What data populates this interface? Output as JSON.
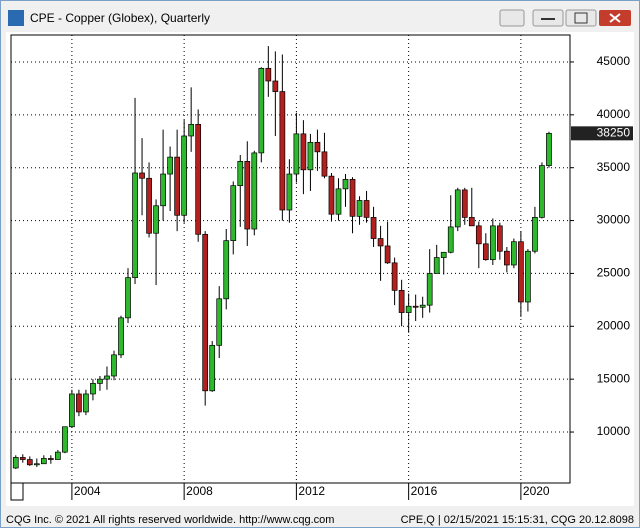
{
  "window_title": "CPE - Copper (Globex), Quarterly",
  "footer_left": "CQG Inc. © 2021 All rights reserved worldwide. http://www.cqg.com",
  "footer_right": "CPE,Q | 02/15/2021 15:15:31, CQG 20.12.8098",
  "chart_data": {
    "type": "candlestick",
    "x": [
      2002,
      2002.25,
      2002.5,
      2002.75,
      2003,
      2003.25,
      2003.5,
      2003.75,
      2004,
      2004.25,
      2004.5,
      2004.75,
      2005,
      2005.25,
      2005.5,
      2005.75,
      2006,
      2006.25,
      2006.5,
      2006.75,
      2007,
      2007.25,
      2007.5,
      2007.75,
      2008,
      2008.25,
      2008.5,
      2008.75,
      2009,
      2009.25,
      2009.5,
      2009.75,
      2010,
      2010.25,
      2010.5,
      2010.75,
      2011,
      2011.25,
      2011.5,
      2011.75,
      2012,
      2012.25,
      2012.5,
      2012.75,
      2013,
      2013.25,
      2013.5,
      2013.75,
      2014,
      2014.25,
      2014.5,
      2014.75,
      2015,
      2015.25,
      2015.5,
      2015.75,
      2016,
      2016.25,
      2016.5,
      2016.75,
      2017,
      2017.25,
      2017.5,
      2017.75,
      2018,
      2018.25,
      2018.5,
      2018.75,
      2019,
      2019.25,
      2019.5,
      2019.75,
      2020,
      2020.25,
      2020.5,
      2020.75,
      2021
    ],
    "open": [
      6600,
      7600,
      7400,
      6900,
      7000,
      7500,
      7400,
      8100,
      10500,
      13600,
      11900,
      13600,
      14600,
      15000,
      15300,
      17300,
      20800,
      24600,
      34500,
      34000,
      28800,
      31400,
      34400,
      36000,
      30500,
      38000,
      39100,
      28700,
      13900,
      18200,
      22600,
      28100,
      33300,
      35600,
      29200,
      36400,
      44400,
      43200,
      42200,
      31000,
      34400,
      38200,
      34800,
      37400,
      36500,
      34200,
      30600,
      33000,
      33900,
      30400,
      31900,
      30300,
      28300,
      27600,
      26000,
      23400,
      21300,
      21900,
      21800,
      22000,
      25000,
      26500,
      27000,
      29400,
      32900,
      30300,
      29500,
      27800,
      26300,
      29500,
      27100,
      25800,
      28000,
      22300,
      27100,
      30300,
      35200
    ],
    "high": [
      7800,
      7900,
      7700,
      7500,
      7800,
      7800,
      8300,
      10500,
      14000,
      14000,
      14000,
      15000,
      15300,
      16200,
      17700,
      21000,
      25500,
      41600,
      37800,
      35500,
      32000,
      38600,
      37000,
      38600,
      39500,
      42600,
      40500,
      29000,
      18600,
      23800,
      29200,
      33700,
      36200,
      37500,
      36600,
      44500,
      46500,
      46000,
      45700,
      35800,
      40200,
      39500,
      38200,
      38600,
      38300,
      34500,
      34000,
      34400,
      34100,
      32300,
      32800,
      31300,
      29500,
      29900,
      26500,
      24400,
      23100,
      23000,
      22800,
      27300,
      27700,
      27000,
      32400,
      33100,
      33100,
      33100,
      29900,
      28800,
      30200,
      29800,
      27500,
      28300,
      29000,
      27300,
      31300,
      35500,
      38400
    ],
    "low": [
      6500,
      7100,
      6800,
      6700,
      7000,
      7000,
      7400,
      8000,
      10400,
      11500,
      11600,
      13000,
      13900,
      14000,
      14900,
      17000,
      20300,
      24000,
      30500,
      28400,
      23900,
      30000,
      30900,
      29000,
      29800,
      36500,
      28000,
      12500,
      13800,
      17000,
      21600,
      26800,
      29400,
      27600,
      28600,
      35500,
      41700,
      38000,
      30000,
      29800,
      33600,
      32500,
      32800,
      34700,
      34000,
      29900,
      30000,
      31300,
      28800,
      29600,
      29800,
      27500,
      24300,
      25900,
      22000,
      20000,
      19400,
      20500,
      20800,
      21300,
      25000,
      24900,
      26900,
      29000,
      29600,
      29600,
      25500,
      26200,
      25800,
      26300,
      25100,
      25500,
      20900,
      21400,
      26900,
      30200,
      35000
    ],
    "close": [
      7600,
      7400,
      6900,
      7000,
      7500,
      7400,
      8100,
      10500,
      13600,
      11900,
      13600,
      14600,
      15000,
      15300,
      17300,
      20800,
      24600,
      34500,
      34000,
      28800,
      31400,
      34400,
      36000,
      30500,
      38000,
      39100,
      28700,
      13900,
      18200,
      22600,
      28100,
      33300,
      35600,
      29200,
      36400,
      44400,
      43200,
      42200,
      31000,
      34400,
      38200,
      34800,
      37400,
      36500,
      34200,
      30600,
      33000,
      33900,
      30400,
      31900,
      30300,
      28300,
      27600,
      26000,
      23400,
      21300,
      21900,
      21800,
      22000,
      25000,
      26500,
      27000,
      29400,
      32900,
      30300,
      29500,
      27800,
      26300,
      29500,
      27100,
      25800,
      28000,
      22300,
      27100,
      30300,
      35200,
      38250
    ],
    "xlim": [
      2001.83,
      2021.75
    ],
    "xticks": [
      2004,
      2008,
      2012,
      2016,
      2020
    ],
    "ylim": [
      5180,
      47550
    ],
    "yticks": [
      10000,
      15000,
      20000,
      25000,
      30000,
      35000,
      40000,
      45000
    ],
    "grid": true,
    "up_color": "#2db82d",
    "down_color": "#b32020"
  }
}
